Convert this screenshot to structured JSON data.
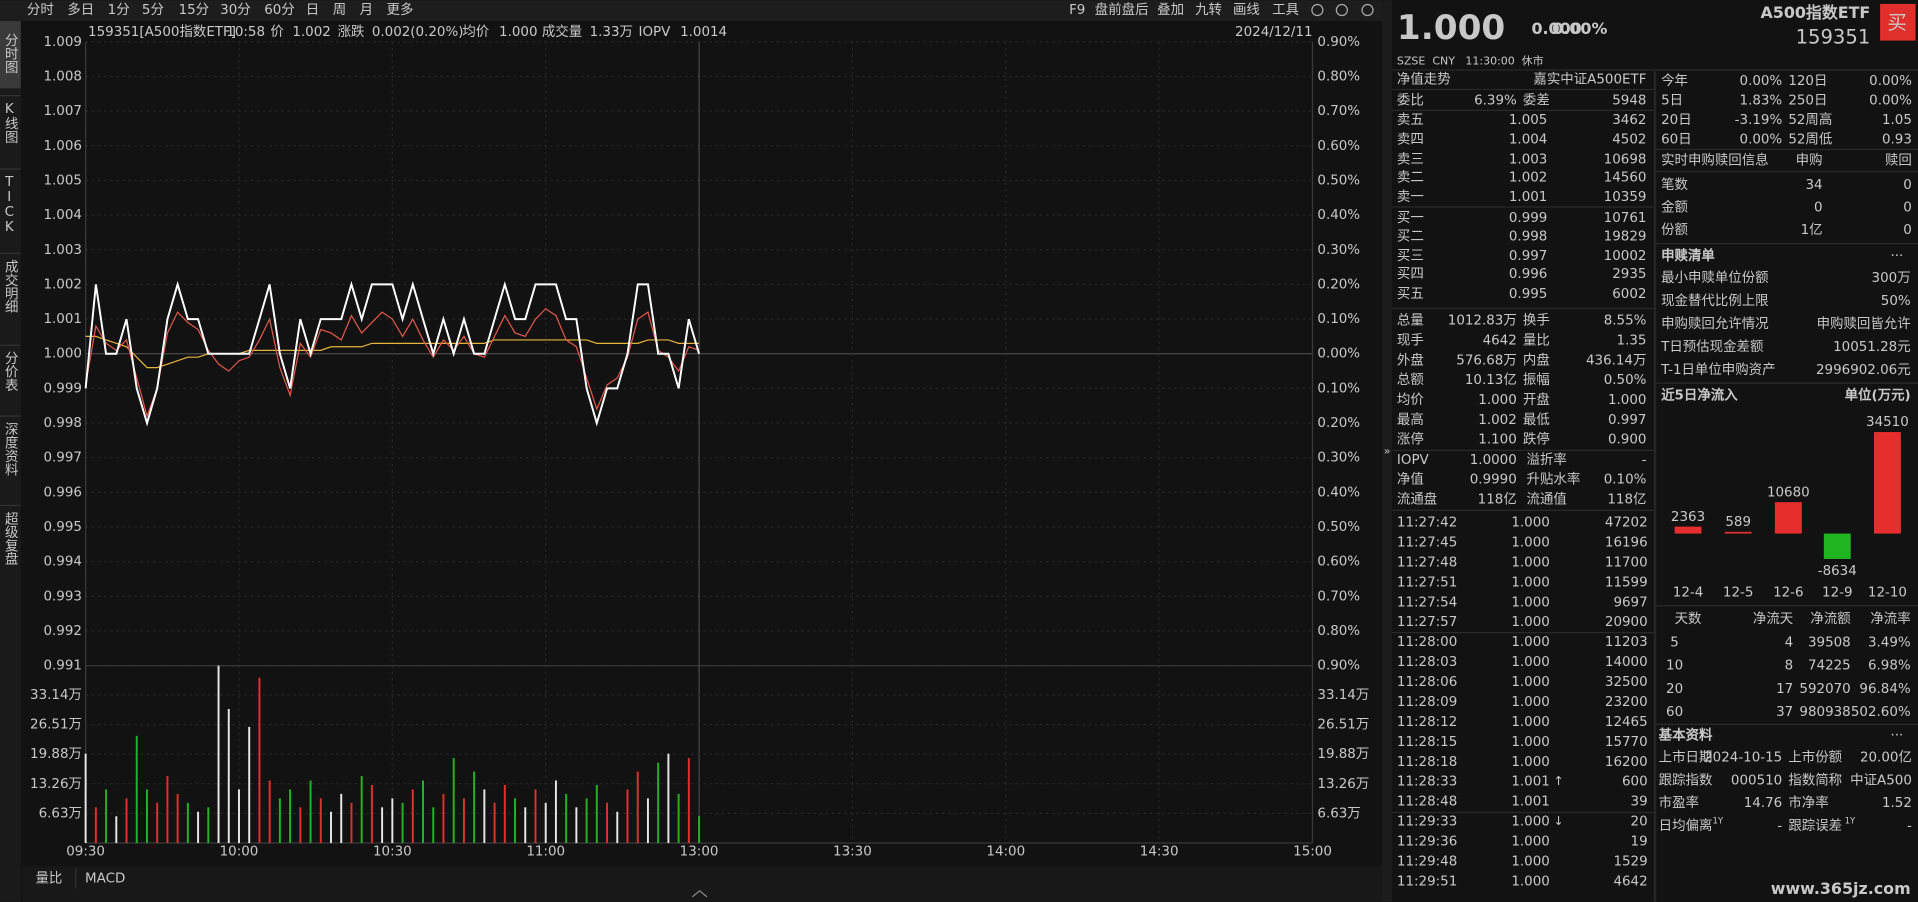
{
  "toolbar": {
    "left": [
      "分时",
      "多日",
      "1分",
      "5分",
      "15分",
      "30分",
      "60分",
      "日",
      "周",
      "月",
      "更多"
    ],
    "right": [
      "F9",
      "盘前盘后",
      "叠加",
      "九转",
      "画线",
      "工具"
    ]
  },
  "sidebar": [
    "分时图",
    "K线图",
    "TICK",
    "成交明细",
    "分价表",
    "深度资料",
    "超级复盘"
  ],
  "info_bar": [
    {
      "text": "159351[A500指数ETF]",
      "color": "#d0d0d0"
    },
    {
      "text": "10:58",
      "color": "#35c9d6"
    },
    {
      "text": "价",
      "color": "#c8c8c8"
    },
    {
      "text": "1.002",
      "color": "#f23b3b"
    },
    {
      "text": "涨跌",
      "color": "#c8c8c8"
    },
    {
      "text": "0.002(0.20%)",
      "color": "#f23b3b"
    },
    {
      "text": "均价",
      "color": "#c8c8c8"
    },
    {
      "text": "1.000",
      "color": "#e6e6e6"
    },
    {
      "text": "成交量",
      "color": "#c8c8c8"
    },
    {
      "text": "1.33万",
      "color": "#e6e6e6"
    },
    {
      "text": "IOPV",
      "color": "#f23b3b"
    },
    {
      "text": "1.0014",
      "color": "#f23b3b"
    }
  ],
  "date": "2024/12/11",
  "chart_data": [
    {
      "type": "line",
      "x": [
        "09:30",
        "09:32",
        "09:34",
        "09:36",
        "09:38",
        "09:40",
        "09:42",
        "09:44",
        "09:46",
        "09:48",
        "09:50",
        "09:52",
        "09:54",
        "09:56",
        "09:58",
        "10:00",
        "10:02",
        "10:04",
        "10:06",
        "10:08",
        "10:10",
        "10:12",
        "10:14",
        "10:16",
        "10:18",
        "10:20",
        "10:22",
        "10:24",
        "10:26",
        "10:28",
        "10:30",
        "10:32",
        "10:34",
        "10:36",
        "10:38",
        "10:40",
        "10:42",
        "10:44",
        "10:46",
        "10:48",
        "10:50",
        "10:52",
        "10:54",
        "10:56",
        "10:58",
        "11:00",
        "11:02",
        "11:04",
        "11:06",
        "11:08",
        "11:10",
        "11:12",
        "11:14",
        "11:16",
        "11:18",
        "11:20",
        "11:22",
        "11:24",
        "11:26",
        "11:28",
        "11:30"
      ],
      "series": [
        {
          "color": "#ffffff",
          "values": [
            0.999,
            1.002,
            1.0,
            1.0,
            1.001,
            0.999,
            0.998,
            0.999,
            1.001,
            1.002,
            1.001,
            1.001,
            1.0,
            1.0,
            1.0,
            1.0,
            1.0,
            1.001,
            1.002,
            1.0,
            0.999,
            1.001,
            1.0,
            1.001,
            1.001,
            1.001,
            1.002,
            1.001,
            1.002,
            1.002,
            1.002,
            1.001,
            1.002,
            1.001,
            1.0,
            1.001,
            1.0,
            1.001,
            1.0,
            1.0,
            1.001,
            1.002,
            1.001,
            1.001,
            1.002,
            1.002,
            1.002,
            1.001,
            1.001,
            0.999,
            0.998,
            0.999,
            0.999,
            1.0,
            1.002,
            1.002,
            1.0,
            1.0,
            0.999,
            1.001,
            1.0
          ]
        },
        {
          "color": "#e2574c",
          "values": [
            0.9991,
            1.0008,
            1.0003,
            1.0001,
            1.0004,
            0.9993,
            0.9982,
            0.999,
            1.0006,
            1.0012,
            1.0009,
            1.0007,
            1.0001,
            0.9997,
            0.9995,
            0.9998,
            0.9999,
            1.0004,
            1.001,
            0.9996,
            0.9988,
            1.0003,
            0.9999,
            1.0007,
            1.0006,
            1.0004,
            1.0011,
            1.0006,
            1.0009,
            1.0012,
            1.001,
            1.0005,
            1.001,
            1.0004,
            0.9999,
            1.0004,
            1.0001,
            1.0005,
            1.0,
            0.9999,
            1.0005,
            1.0011,
            1.0006,
            1.0005,
            1.001,
            1.0013,
            1.0011,
            1.0004,
            1.0002,
            0.9993,
            0.9984,
            0.9991,
            0.9993,
            0.9999,
            1.001,
            1.0012,
            1.0001,
            0.9999,
            0.9995,
            1.0002,
            1.0001
          ]
        },
        {
          "color": "#e8b33a",
          "values": [
            1.0005,
            1.0005,
            1.0004,
            1.0003,
            1.0002,
            0.9999,
            0.9996,
            0.9996,
            0.9997,
            0.9998,
            0.9999,
            0.9999,
            1.0,
            1.0,
            1.0,
            1.0,
            1.0001,
            1.0001,
            1.0001,
            1.0001,
            1.0001,
            1.0001,
            1.0001,
            1.0001,
            1.0002,
            1.0002,
            1.0002,
            1.0002,
            1.0003,
            1.0003,
            1.0003,
            1.0003,
            1.0003,
            1.0003,
            1.0003,
            1.0003,
            1.0003,
            1.0003,
            1.0003,
            1.0003,
            1.0004,
            1.0004,
            1.0004,
            1.0004,
            1.0004,
            1.0004,
            1.0004,
            1.0004,
            1.0004,
            1.0004,
            1.0003,
            1.0003,
            1.0003,
            1.0003,
            1.0003,
            1.0004,
            1.0004,
            1.0004,
            1.0003,
            1.0003,
            1.0003
          ]
        }
      ],
      "ylim": [
        0.991,
        1.009
      ],
      "yticks": [
        {
          "value": 1.009,
          "label": "1.009"
        },
        {
          "value": 1.008,
          "label": "1.008"
        },
        {
          "value": 1.007,
          "label": "1.007"
        },
        {
          "value": 1.006,
          "label": "1.006"
        },
        {
          "value": 1.005,
          "label": "1.005"
        },
        {
          "value": 1.004,
          "label": "1.004"
        },
        {
          "value": 1.003,
          "label": "1.003"
        },
        {
          "value": 1.002,
          "label": "1.002"
        },
        {
          "value": 1.001,
          "label": "1.001"
        },
        {
          "value": 1.0,
          "label": "1.000"
        },
        {
          "value": 0.999,
          "label": "0.999"
        },
        {
          "value": 0.998,
          "label": "0.998"
        },
        {
          "value": 0.997,
          "label": "0.997"
        },
        {
          "value": 0.996,
          "label": "0.996"
        },
        {
          "value": 0.995,
          "label": "0.995"
        },
        {
          "value": 0.994,
          "label": "0.994"
        },
        {
          "value": 0.993,
          "label": "0.993"
        },
        {
          "value": 0.992,
          "label": "0.992"
        },
        {
          "value": 0.991,
          "label": "0.991"
        }
      ],
      "y2lim": [
        -0.9,
        0.9
      ],
      "y2ticks": [
        {
          "value": 0.9,
          "label": "0.90%"
        },
        {
          "value": 0.8,
          "label": "0.80%"
        },
        {
          "value": 0.7,
          "label": "0.70%"
        },
        {
          "value": 0.6,
          "label": "0.60%"
        },
        {
          "value": 0.5,
          "label": "0.50%"
        },
        {
          "value": 0.4,
          "label": "0.40%"
        },
        {
          "value": 0.3,
          "label": "0.30%"
        },
        {
          "value": 0.2,
          "label": "0.20%"
        },
        {
          "value": 0.1,
          "label": "0.10%"
        },
        {
          "value": 0,
          "label": "0.00%"
        },
        {
          "value": -0.1,
          "label": "0.10%"
        },
        {
          "value": -0.2,
          "label": "0.20%"
        },
        {
          "value": -0.3,
          "label": "0.30%"
        },
        {
          "value": -0.4,
          "label": "0.40%"
        },
        {
          "value": -0.5,
          "label": "0.50%"
        },
        {
          "value": -0.6,
          "label": "0.60%"
        },
        {
          "value": -0.7,
          "label": "0.70%"
        },
        {
          "value": -0.8,
          "label": "0.80%"
        },
        {
          "value": -0.9,
          "label": "0.90%"
        }
      ],
      "xticks": [
        "09:30",
        "10:00",
        "10:30",
        "11:00",
        "13:00",
        "13:30",
        "14:00",
        "14:30",
        "15:00"
      ],
      "grid": true
    },
    {
      "type": "bar",
      "x": [
        "09:30",
        "09:32",
        "09:34",
        "09:36",
        "09:38",
        "09:40",
        "09:42",
        "09:44",
        "09:46",
        "09:48",
        "09:50",
        "09:52",
        "09:54",
        "09:56",
        "09:58",
        "10:00",
        "10:02",
        "10:04",
        "10:06",
        "10:08",
        "10:10",
        "10:12",
        "10:14",
        "10:16",
        "10:18",
        "10:20",
        "10:22",
        "10:24",
        "10:26",
        "10:28",
        "10:30",
        "10:32",
        "10:34",
        "10:36",
        "10:38",
        "10:40",
        "10:42",
        "10:44",
        "10:46",
        "10:48",
        "10:50",
        "10:52",
        "10:54",
        "10:56",
        "10:58",
        "11:00",
        "11:02",
        "11:04",
        "11:06",
        "11:08",
        "11:10",
        "11:12",
        "11:14",
        "11:16",
        "11:18",
        "11:20",
        "11:22",
        "11:24",
        "11:26",
        "11:28",
        "11:30"
      ],
      "values": [
        20,
        8,
        12,
        6,
        10,
        24,
        12,
        9,
        15,
        11,
        9,
        7,
        8,
        39.7,
        30,
        12,
        26,
        37,
        14,
        10,
        12,
        8,
        14,
        10,
        7,
        11,
        9,
        15,
        13,
        8,
        10,
        9,
        12,
        14,
        8,
        11,
        19,
        10,
        16,
        12,
        9,
        13,
        10,
        8,
        12,
        9,
        14,
        11,
        8,
        10,
        13,
        9,
        7,
        12,
        16,
        10,
        18,
        20,
        11,
        19,
        6
      ],
      "ylim": [
        0,
        39.7
      ],
      "yticks": [
        {
          "value": 33.14,
          "label": "33.14万"
        },
        {
          "value": 26.51,
          "label": "26.51万"
        },
        {
          "value": 19.88,
          "label": "19.88万"
        },
        {
          "value": 13.26,
          "label": "13.26万"
        },
        {
          "value": 6.63,
          "label": "6.63万"
        }
      ],
      "grid": true
    },
    {
      "type": "bar",
      "title": "近5日净流入",
      "unit": "单位(万元)",
      "categories": [
        "12-4",
        "12-5",
        "12-6",
        "12-9",
        "12-10"
      ],
      "values": [
        2363,
        589,
        10680,
        -8634,
        34510
      ]
    }
  ],
  "tabs": [
    "量比",
    "MACD"
  ],
  "quote": {
    "price": "1.000",
    "change": "0.000",
    "pct": "0.00%",
    "name": "A500指数ETF",
    "code": "159351",
    "buy": "买",
    "meta": [
      "SZSE",
      "CNY",
      "11:30:00",
      "休市"
    ]
  },
  "depth": {
    "title": "净值走势",
    "fund": "嘉实中证A500ETF",
    "ratio": [
      "委比",
      "6.39%",
      "委差",
      "5948"
    ],
    "asks": [
      [
        "卖五",
        "1.005",
        "3462"
      ],
      [
        "卖四",
        "1.004",
        "4502"
      ],
      [
        "卖三",
        "1.003",
        "10698"
      ],
      [
        "卖二",
        "1.002",
        "14560"
      ],
      [
        "卖一",
        "1.001",
        "10359"
      ]
    ],
    "bids": [
      [
        "买一",
        "0.999",
        "10761"
      ],
      [
        "买二",
        "0.998",
        "19829"
      ],
      [
        "买三",
        "0.997",
        "10002"
      ],
      [
        "买四",
        "0.996",
        "2935"
      ],
      [
        "买五",
        "0.995",
        "6002"
      ]
    ]
  },
  "stats": [
    [
      "总量",
      "1012.83万",
      "换手",
      "8.55%"
    ],
    [
      "现手",
      "4642",
      "量比",
      "1.35"
    ],
    [
      "外盘",
      "576.68万",
      "内盘",
      "436.14万"
    ],
    [
      "总额",
      "10.13亿",
      "振幅",
      "0.50%"
    ],
    [
      "均价",
      "1.000",
      "开盘",
      "1.000"
    ],
    [
      "最高",
      "1.002",
      "最低",
      "0.997"
    ],
    [
      "涨停",
      "1.100",
      "跌停",
      "0.900"
    ]
  ],
  "stat_colors": [
    [
      "#e6e6e6",
      "#e6e6e6"
    ],
    [
      "#e6e6e6",
      "#e6e6e6"
    ],
    [
      "#f23b3b",
      "#21b621"
    ],
    [
      "#e6e6e6",
      "#e6e6e6"
    ],
    [
      "#f23b3b",
      "#e6e6e6"
    ],
    [
      "#f23b3b",
      "#21b621"
    ],
    [
      "#f23b3b",
      "#21b621"
    ]
  ],
  "nav": [
    [
      "IOPV",
      "1.0000",
      "溢折率",
      "-"
    ],
    [
      "净值",
      "0.9990",
      "升贴水率",
      "0.10%"
    ],
    [
      "流通盘",
      "118亿",
      "流通值",
      "118亿"
    ]
  ],
  "nav_colors": [
    [
      "#e6e6e6",
      "#e6e6e6"
    ],
    [
      "#f23b3b",
      "#f23b3b"
    ],
    [
      "#e6e6e6",
      "#e6e6e6"
    ]
  ],
  "trades": [
    {
      "time": "11:27:42",
      "price": "1.000",
      "volume": "47202",
      "color": "#f23b3b"
    },
    {
      "time": "11:27:45",
      "price": "1.000",
      "volume": "16196",
      "color": "#f23b3b"
    },
    {
      "time": "11:27:48",
      "price": "1.000",
      "volume": "11700",
      "color": "#f23b3b"
    },
    {
      "time": "11:27:51",
      "price": "1.000",
      "volume": "11599",
      "color": "#21b621"
    },
    {
      "time": "11:27:54",
      "price": "1.000",
      "volume": "9697",
      "color": "#f23b3b"
    },
    {
      "time": "11:27:57",
      "price": "1.000",
      "volume": "20900",
      "color": "#21b621"
    },
    {
      "time": "11:28:00",
      "price": "1.000",
      "volume": "11203",
      "color": "#21b621"
    },
    {
      "time": "11:28:03",
      "price": "1.000",
      "volume": "14000",
      "color": "#f23b3b"
    },
    {
      "time": "11:28:06",
      "price": "1.000",
      "volume": "32500",
      "color": "#f23b3b"
    },
    {
      "time": "11:28:09",
      "price": "1.000",
      "volume": "23200",
      "color": "#21b621"
    },
    {
      "time": "11:28:12",
      "price": "1.000",
      "volume": "12465",
      "color": "#21b621"
    },
    {
      "time": "11:28:15",
      "price": "1.000",
      "volume": "15770",
      "color": "#f23b3b"
    },
    {
      "time": "11:28:18",
      "price": "1.000",
      "volume": "16200",
      "color": "#21b621"
    },
    {
      "time": "11:28:33",
      "price": "1.001",
      "volume": "600",
      "color": "#f23b3b",
      "price_color": "#f23b3b",
      "flag": "↑"
    },
    {
      "time": "11:28:48",
      "price": "1.001",
      "volume": "39",
      "color": "#f23b3b",
      "price_color": "#f23b3b"
    },
    {
      "time": "11:29:33",
      "price": "1.000",
      "volume": "20",
      "color": "#21b621",
      "flag": "↓"
    },
    {
      "time": "11:29:36",
      "price": "1.000",
      "volume": "19",
      "color": "#21b621"
    },
    {
      "time": "11:29:48",
      "price": "1.000",
      "volume": "1529",
      "color": "#21b621"
    },
    {
      "time": "11:29:51",
      "price": "1.000",
      "volume": "4642",
      "color": "#f23b3b"
    }
  ],
  "returns": [
    [
      "今年",
      "0.00%",
      "120日",
      "0.00%"
    ],
    [
      "5日",
      "1.83%",
      "250日",
      "0.00%"
    ],
    [
      "20日",
      "-3.19%",
      "52周高",
      "1.05"
    ],
    [
      "60日",
      "0.00%",
      "52周低",
      "0.93"
    ]
  ],
  "return_colors": [
    [
      "#e6e6e6",
      "#e6e6e6"
    ],
    [
      "#f23b3b",
      "#e6e6e6"
    ],
    [
      "#21b621",
      "#e6e6e6"
    ],
    [
      "#e6e6e6",
      "#e6e6e6"
    ]
  ],
  "creation": {
    "title": "实时申购赎回信息",
    "cols": [
      "申购",
      "赎回"
    ],
    "rows": [
      [
        "笔数",
        "34",
        "0"
      ],
      [
        "金额",
        "0",
        "0"
      ],
      [
        "份额",
        "1亿",
        "0"
      ]
    ]
  },
  "list": {
    "title": "申赎清单",
    "more": "···",
    "rows": [
      [
        "最小申赎单位份额",
        "300万"
      ],
      [
        "现金替代比例上限",
        "50%"
      ],
      [
        "申购赎回允许情况",
        "申购赎回皆允许"
      ],
      [
        "T日预估现金差额",
        "10051.28元"
      ],
      [
        "T-1日单位申购资产",
        "2996902.06元"
      ]
    ]
  },
  "flow_table": {
    "header": [
      "天数",
      "净流天",
      "净流额",
      "净流率"
    ],
    "rows": [
      [
        "5",
        "4",
        "39508",
        "3.49%"
      ],
      [
        "10",
        "8",
        "74225",
        "6.98%"
      ],
      [
        "20",
        "17",
        "592070",
        "96.84%"
      ],
      [
        "60",
        "37",
        "980938",
        "502.60%"
      ]
    ]
  },
  "basic": {
    "title": "基本资料",
    "more": "···",
    "rows": [
      [
        "上市日期",
        "2024-10-15",
        "上市份额",
        "20.00亿"
      ],
      [
        "跟踪指数",
        "000510",
        "指数简称",
        "中证A500"
      ],
      [
        "市盈率",
        "14.76",
        "市净率",
        "1.52"
      ],
      [
        "日均偏离",
        "-",
        "跟踪误差",
        "-"
      ]
    ],
    "sup": "1Y"
  },
  "watermark": "www.365jz.com"
}
